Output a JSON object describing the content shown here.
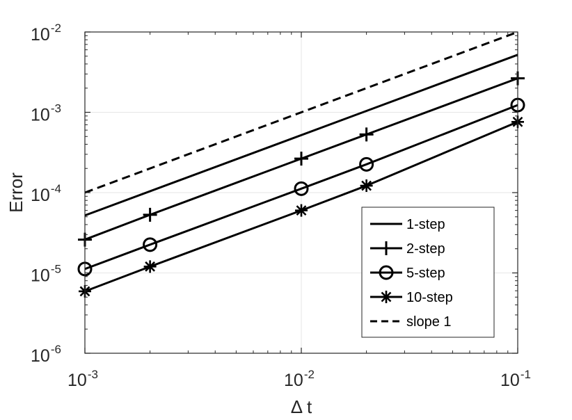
{
  "chart_data": {
    "type": "line",
    "title": "",
    "xlabel": "Δ t",
    "ylabel": "Error",
    "x_scale": "log",
    "y_scale": "log",
    "xlim": [
      0.001,
      0.1
    ],
    "ylim": [
      1e-06,
      0.01
    ],
    "grid": true,
    "legend_position": "bottom-right",
    "x_ticks": [
      {
        "value": 0.001,
        "base": "10",
        "exp": "-3"
      },
      {
        "value": 0.01,
        "base": "10",
        "exp": "-2"
      },
      {
        "value": 0.1,
        "base": "10",
        "exp": "-1"
      }
    ],
    "y_ticks": [
      {
        "value": 1e-06,
        "base": "10",
        "exp": "-6"
      },
      {
        "value": 1e-05,
        "base": "10",
        "exp": "-5"
      },
      {
        "value": 0.0001,
        "base": "10",
        "exp": "-4"
      },
      {
        "value": 0.001,
        "base": "10",
        "exp": "-3"
      },
      {
        "value": 0.01,
        "base": "10",
        "exp": "-2"
      }
    ],
    "series": [
      {
        "name": "1-step",
        "marker": "none",
        "dash": "solid",
        "x": [
          0.001,
          0.1
        ],
        "y": [
          5.2e-05,
          0.0052
        ]
      },
      {
        "name": "2-step",
        "marker": "plus",
        "dash": "solid",
        "x": [
          0.001,
          0.002,
          0.01,
          0.02,
          0.1
        ],
        "y": [
          2.6e-05,
          5.3e-05,
          0.000265,
          0.00053,
          0.00265
        ]
      },
      {
        "name": "5-step",
        "marker": "circle",
        "dash": "solid",
        "x": [
          0.001,
          0.002,
          0.01,
          0.02,
          0.1
        ],
        "y": [
          1.12e-05,
          2.25e-05,
          0.000112,
          0.000225,
          0.00123
        ]
      },
      {
        "name": "10-step",
        "marker": "asterisk",
        "dash": "solid",
        "x": [
          0.001,
          0.002,
          0.01,
          0.02,
          0.1
        ],
        "y": [
          5.9e-06,
          1.2e-05,
          6e-05,
          0.000122,
          0.00076
        ]
      },
      {
        "name": "slope 1",
        "marker": "none",
        "dash": "dashed",
        "x": [
          0.001,
          0.1
        ],
        "y": [
          0.0001,
          0.01
        ]
      }
    ],
    "colors": {
      "lines": "#000000",
      "axes": "#262626",
      "grid": "#e6e6e6",
      "background": "#ffffff"
    }
  }
}
